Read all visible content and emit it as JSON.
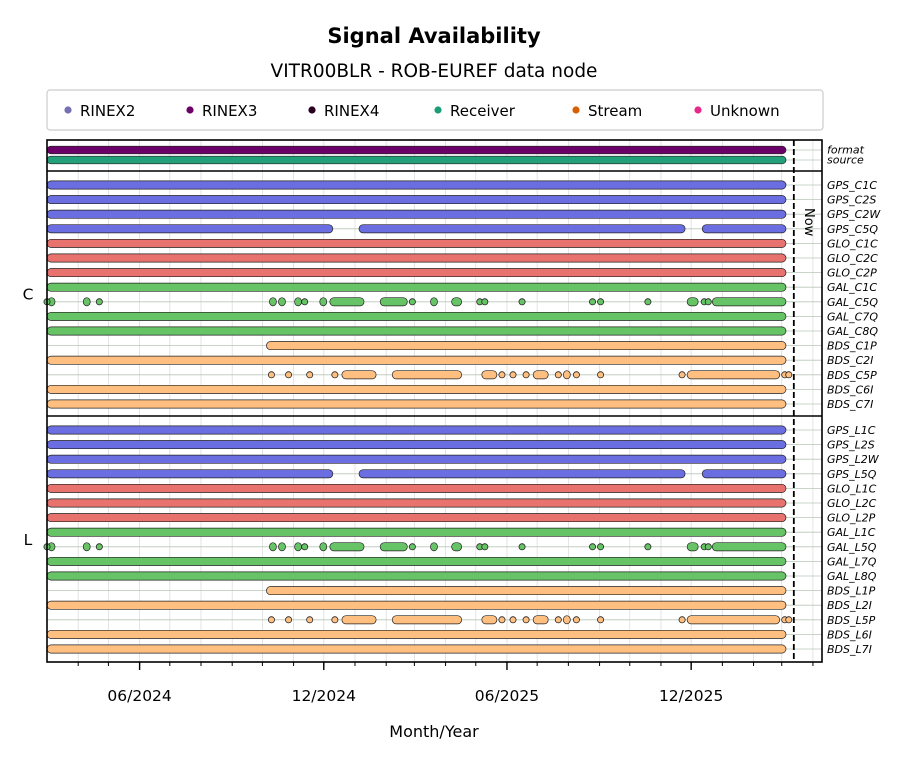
{
  "chart_data": {
    "type": "timeline",
    "title": "Signal Availability",
    "subtitle": "VITR00BLR - ROB-EUREF data node",
    "xlabel": "Month/Year",
    "x_ticks": [
      "06/2024",
      "12/2024",
      "06/2025",
      "12/2025"
    ],
    "now_label": "Now",
    "legend": [
      {
        "label": "RINEX2",
        "color": "#7570b3"
      },
      {
        "label": "RINEX3",
        "color": "#6a0068"
      },
      {
        "label": "RINEX4",
        "color": "#2a0020"
      },
      {
        "label": "Receiver",
        "color": "#1b9e77"
      },
      {
        "label": "Stream",
        "color": "#d95f02"
      },
      {
        "label": "Unknown",
        "color": "#e7298a"
      }
    ],
    "colors": {
      "GPS": "#6a6ee0",
      "GLO": "#e8736e",
      "GAL": "#66c466",
      "BDS": "#ffbf80",
      "format": "#6a0068",
      "source": "#23a07a"
    },
    "meta_rows": [
      {
        "label": "format",
        "color_key": "format"
      },
      {
        "label": "source",
        "color_key": "source"
      }
    ],
    "groups": [
      {
        "label": "C",
        "rows": [
          {
            "label": "GPS_C1C",
            "pattern": "full"
          },
          {
            "label": "GPS_C2S",
            "pattern": "full"
          },
          {
            "label": "GPS_C2W",
            "pattern": "full"
          },
          {
            "label": "GPS_C5Q",
            "pattern": "gps5"
          },
          {
            "label": "GLO_C1C",
            "pattern": "full"
          },
          {
            "label": "GLO_C2C",
            "pattern": "full"
          },
          {
            "label": "GLO_C2P",
            "pattern": "full"
          },
          {
            "label": "GAL_C1C",
            "pattern": "full"
          },
          {
            "label": "GAL_C5Q",
            "pattern": "gal5"
          },
          {
            "label": "GAL_C7Q",
            "pattern": "full"
          },
          {
            "label": "GAL_C8Q",
            "pattern": "full"
          },
          {
            "label": "BDS_C1P",
            "pattern": "b1p"
          },
          {
            "label": "BDS_C2I",
            "pattern": "full"
          },
          {
            "label": "BDS_C5P",
            "pattern": "bds5"
          },
          {
            "label": "BDS_C6I",
            "pattern": "full"
          },
          {
            "label": "BDS_C7I",
            "pattern": "full"
          }
        ]
      },
      {
        "label": "L",
        "rows": [
          {
            "label": "GPS_L1C",
            "pattern": "full"
          },
          {
            "label": "GPS_L2S",
            "pattern": "full"
          },
          {
            "label": "GPS_L2W",
            "pattern": "full"
          },
          {
            "label": "GPS_L5Q",
            "pattern": "gps5"
          },
          {
            "label": "GLO_L1C",
            "pattern": "full"
          },
          {
            "label": "GLO_L2C",
            "pattern": "full"
          },
          {
            "label": "GLO_L2P",
            "pattern": "full"
          },
          {
            "label": "GAL_L1C",
            "pattern": "full"
          },
          {
            "label": "GAL_L5Q",
            "pattern": "gal5"
          },
          {
            "label": "GAL_L7Q",
            "pattern": "full"
          },
          {
            "label": "GAL_L8Q",
            "pattern": "full"
          },
          {
            "label": "BDS_L1P",
            "pattern": "b1p"
          },
          {
            "label": "BDS_L2I",
            "pattern": "full"
          },
          {
            "label": "BDS_L5P",
            "pattern": "bds5"
          },
          {
            "label": "BDS_L6I",
            "pattern": "full"
          },
          {
            "label": "BDS_L7I",
            "pattern": "full"
          }
        ]
      }
    ],
    "patterns": {
      "full": {
        "segments": [
          [
            "2024-03-01",
            "2026-03-10"
          ]
        ],
        "points": []
      },
      "gps5": {
        "segments": [
          [
            "2024-03-01",
            "2024-12-10"
          ],
          [
            "2025-01-05",
            "2025-11-25"
          ],
          [
            "2025-12-12",
            "2026-03-10"
          ]
        ],
        "points": []
      },
      "b1p": {
        "segments": [
          [
            "2024-10-05",
            "2026-03-10"
          ]
        ],
        "points": []
      },
      "gal5": {
        "segments": [
          [
            "2024-03-02",
            "2024-03-05"
          ],
          [
            "2024-04-06",
            "2024-04-12"
          ],
          [
            "2024-10-08",
            "2024-10-10"
          ],
          [
            "2024-10-17",
            "2024-10-22"
          ],
          [
            "2024-11-02",
            "2024-11-08"
          ],
          [
            "2024-11-27",
            "2024-12-02"
          ],
          [
            "2024-12-07",
            "2025-01-10"
          ],
          [
            "2025-01-26",
            "2025-02-22"
          ],
          [
            "2025-03-17",
            "2025-03-22"
          ],
          [
            "2025-04-07",
            "2025-04-17"
          ],
          [
            "2025-11-27",
            "2025-12-08"
          ],
          [
            "2025-12-22",
            "2026-03-07"
          ]
        ],
        "points": [
          "2024-03-01",
          "2024-04-22",
          "2024-11-12",
          "2025-02-27",
          "2025-05-05",
          "2025-05-10",
          "2025-06-16",
          "2025-08-25",
          "2025-09-02",
          "2025-10-19",
          "2025-12-14",
          "2025-12-18"
        ]
      },
      "bds5": {
        "segments": [
          [
            "2024-12-19",
            "2025-01-22"
          ],
          [
            "2025-02-07",
            "2025-04-17"
          ],
          [
            "2025-05-07",
            "2025-05-22"
          ],
          [
            "2025-06-27",
            "2025-07-12"
          ],
          [
            "2025-07-27",
            "2025-08-02"
          ],
          [
            "2025-11-27",
            "2026-02-27"
          ]
        ],
        "points": [
          "2024-10-10",
          "2024-10-27",
          "2024-11-17",
          "2024-12-12",
          "2025-05-27",
          "2025-06-07",
          "2025-06-20",
          "2025-07-22",
          "2025-08-09",
          "2025-09-02",
          "2025-11-22",
          "2026-03-04",
          "2026-03-08"
        ]
      }
    },
    "x_range": [
      "2024-03-01",
      "2026-04-10"
    ],
    "now_date": "2026-03-13"
  }
}
